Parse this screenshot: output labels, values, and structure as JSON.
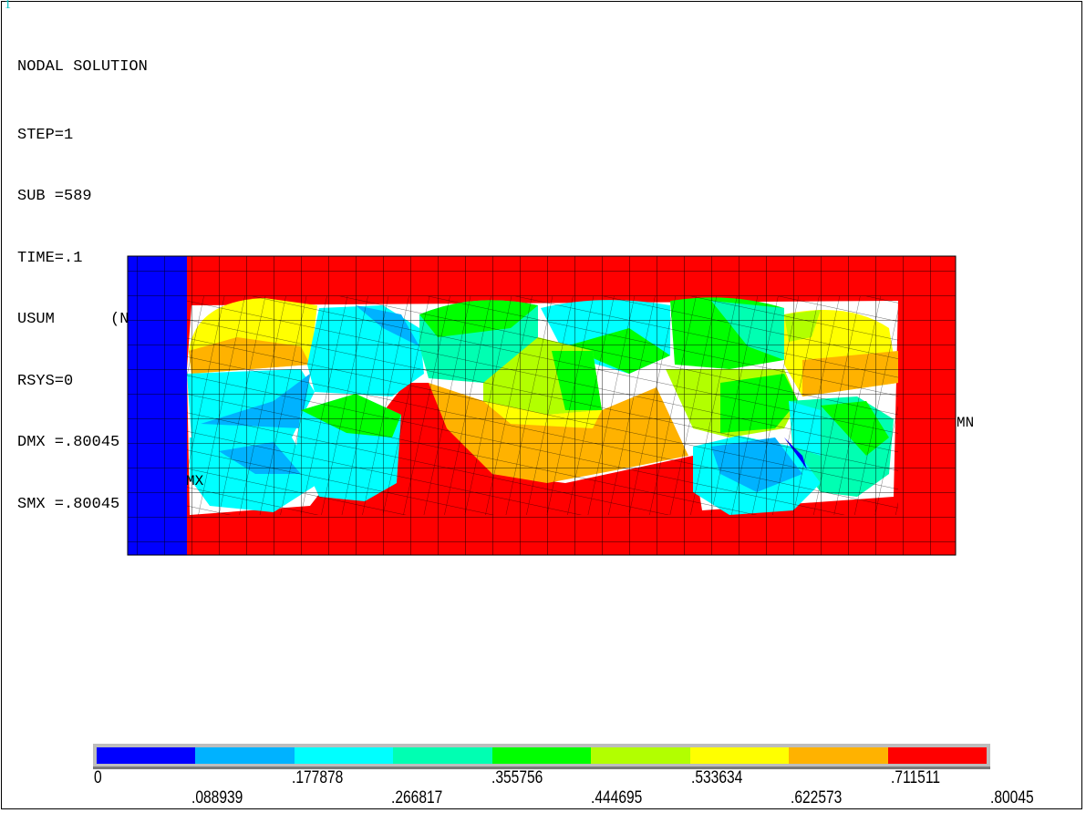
{
  "window_number": "1",
  "info": {
    "title": "NODAL SOLUTION",
    "lines": [
      "STEP=1",
      "SUB =589",
      "TIME=.1",
      "USUM      (NOAVG)",
      "RSYS=0",
      "DMX =.80045",
      "SMX =.80045"
    ]
  },
  "markers": {
    "max": "MX",
    "min": "MN"
  },
  "legend": {
    "colors": [
      "#0000ff",
      "#00b2ff",
      "#00ffff",
      "#00ffb2",
      "#00ff00",
      "#b2ff00",
      "#ffff00",
      "#ffb200",
      "#ff0000"
    ],
    "ticks_upper": [
      "0",
      ".177878",
      ".355756",
      ".533634",
      ".711511"
    ],
    "ticks_lower": [
      ".088939",
      ".266817",
      ".444695",
      ".622573",
      ".80045"
    ]
  }
}
